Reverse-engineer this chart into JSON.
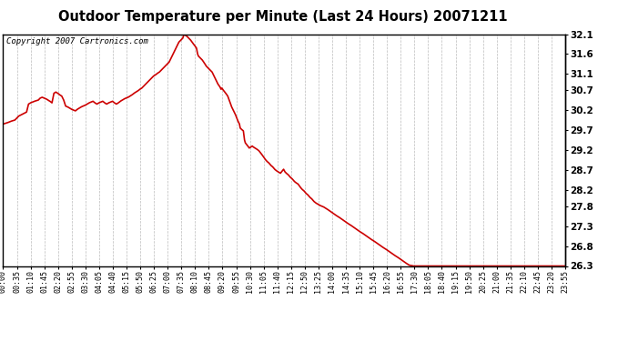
{
  "title": "Outdoor Temperature per Minute (Last 24 Hours) 20071211",
  "copyright": "Copyright 2007 Cartronics.com",
  "line_color": "#cc0000",
  "background_color": "#ffffff",
  "plot_bg_color": "#ffffff",
  "grid_color": "#bbbbbb",
  "title_fontsize": 11,
  "ylim": [
    26.3,
    32.1
  ],
  "yticks": [
    26.3,
    26.8,
    27.3,
    27.8,
    28.2,
    28.7,
    29.2,
    29.7,
    30.2,
    30.7,
    31.1,
    31.6,
    32.1
  ],
  "xtick_labels": [
    "00:00",
    "00:35",
    "01:10",
    "01:45",
    "02:20",
    "02:55",
    "03:30",
    "04:05",
    "04:40",
    "05:15",
    "05:50",
    "06:25",
    "07:00",
    "07:35",
    "08:10",
    "08:45",
    "09:20",
    "09:55",
    "10:30",
    "11:05",
    "11:40",
    "12:15",
    "12:50",
    "13:25",
    "14:00",
    "14:35",
    "15:10",
    "15:45",
    "16:20",
    "16:55",
    "17:30",
    "18:05",
    "18:40",
    "19:15",
    "19:50",
    "20:25",
    "21:00",
    "21:35",
    "22:10",
    "22:45",
    "23:20",
    "23:55"
  ],
  "line_width": 1.2,
  "keypoints": {
    "0": 29.85,
    "10": 29.88,
    "20": 29.92,
    "30": 29.95,
    "40": 30.05,
    "50": 30.1,
    "60": 30.15,
    "65": 30.35,
    "70": 30.38,
    "80": 30.42,
    "90": 30.45,
    "95": 30.5,
    "100": 30.52,
    "105": 30.5,
    "110": 30.48,
    "115": 30.45,
    "120": 30.42,
    "125": 30.38,
    "130": 30.62,
    "135": 30.65,
    "140": 30.62,
    "145": 30.58,
    "150": 30.55,
    "155": 30.45,
    "160": 30.3,
    "165": 30.28,
    "170": 30.25,
    "175": 30.22,
    "180": 30.2,
    "185": 30.18,
    "190": 30.22,
    "195": 30.25,
    "200": 30.28,
    "205": 30.3,
    "210": 30.32,
    "215": 30.35,
    "220": 30.38,
    "225": 30.4,
    "230": 30.42,
    "235": 30.38,
    "240": 30.35,
    "245": 30.38,
    "250": 30.4,
    "255": 30.42,
    "260": 30.38,
    "265": 30.35,
    "270": 30.38,
    "275": 30.4,
    "280": 30.42,
    "285": 30.38,
    "290": 30.35,
    "295": 30.38,
    "300": 30.42,
    "305": 30.45,
    "310": 30.48,
    "315": 30.5,
    "320": 30.52,
    "325": 30.55,
    "330": 30.58,
    "335": 30.62,
    "340": 30.65,
    "345": 30.68,
    "350": 30.72,
    "355": 30.75,
    "360": 30.8,
    "365": 30.85,
    "370": 30.9,
    "375": 30.95,
    "380": 31.0,
    "385": 31.05,
    "390": 31.08,
    "395": 31.12,
    "400": 31.15,
    "405": 31.2,
    "410": 31.25,
    "415": 31.3,
    "420": 31.35,
    "425": 31.4,
    "430": 31.5,
    "435": 31.6,
    "440": 31.7,
    "445": 31.8,
    "450": 31.9,
    "455": 31.95,
    "460": 32.0,
    "463": 32.1,
    "465": 32.08,
    "470": 32.05,
    "475": 32.0,
    "480": 31.95,
    "485": 31.88,
    "490": 31.82,
    "495": 31.75,
    "498": 31.6,
    "500": 31.55,
    "505": 31.5,
    "510": 31.45,
    "515": 31.38,
    "520": 31.3,
    "525": 31.25,
    "530": 31.2,
    "535": 31.15,
    "540": 31.05,
    "545": 30.95,
    "550": 30.85,
    "555": 30.78,
    "558": 30.72,
    "560": 30.75,
    "562": 30.72,
    "565": 30.68,
    "570": 30.62,
    "575": 30.55,
    "580": 30.42,
    "585": 30.28,
    "590": 30.18,
    "595": 30.08,
    "600": 29.95,
    "605": 29.85,
    "607": 29.75,
    "610": 29.72,
    "615": 29.68,
    "618": 29.45,
    "620": 29.38,
    "625": 29.32,
    "628": 29.28,
    "630": 29.25,
    "635": 29.28,
    "638": 29.3,
    "640": 29.28,
    "645": 29.25,
    "650": 29.22,
    "655": 29.18,
    "660": 29.12,
    "665": 29.05,
    "670": 28.98,
    "675": 28.92,
    "680": 28.88,
    "685": 28.82,
    "690": 28.78,
    "695": 28.72,
    "700": 28.68,
    "705": 28.65,
    "710": 28.62,
    "715": 28.68,
    "718": 28.72,
    "720": 28.68,
    "722": 28.65,
    "725": 28.62,
    "730": 28.58,
    "735": 28.52,
    "740": 28.48,
    "745": 28.42,
    "750": 28.38,
    "755": 28.35,
    "760": 28.28,
    "765": 28.22,
    "770": 28.18,
    "775": 28.12,
    "780": 28.08,
    "785": 28.02,
    "790": 27.98,
    "795": 27.92,
    "800": 27.88,
    "810": 27.82,
    "820": 27.78,
    "830": 27.72,
    "840": 27.65,
    "850": 27.58,
    "860": 27.52,
    "870": 27.45,
    "880": 27.38,
    "890": 27.32,
    "900": 27.25,
    "910": 27.18,
    "920": 27.12,
    "930": 27.05,
    "940": 26.98,
    "950": 26.92,
    "960": 26.85,
    "970": 26.78,
    "980": 26.72,
    "990": 26.65,
    "1000": 26.58,
    "1010": 26.52,
    "1020": 26.45,
    "1030": 26.38,
    "1040": 26.32,
    "1050": 26.3,
    "1439": 26.3
  }
}
